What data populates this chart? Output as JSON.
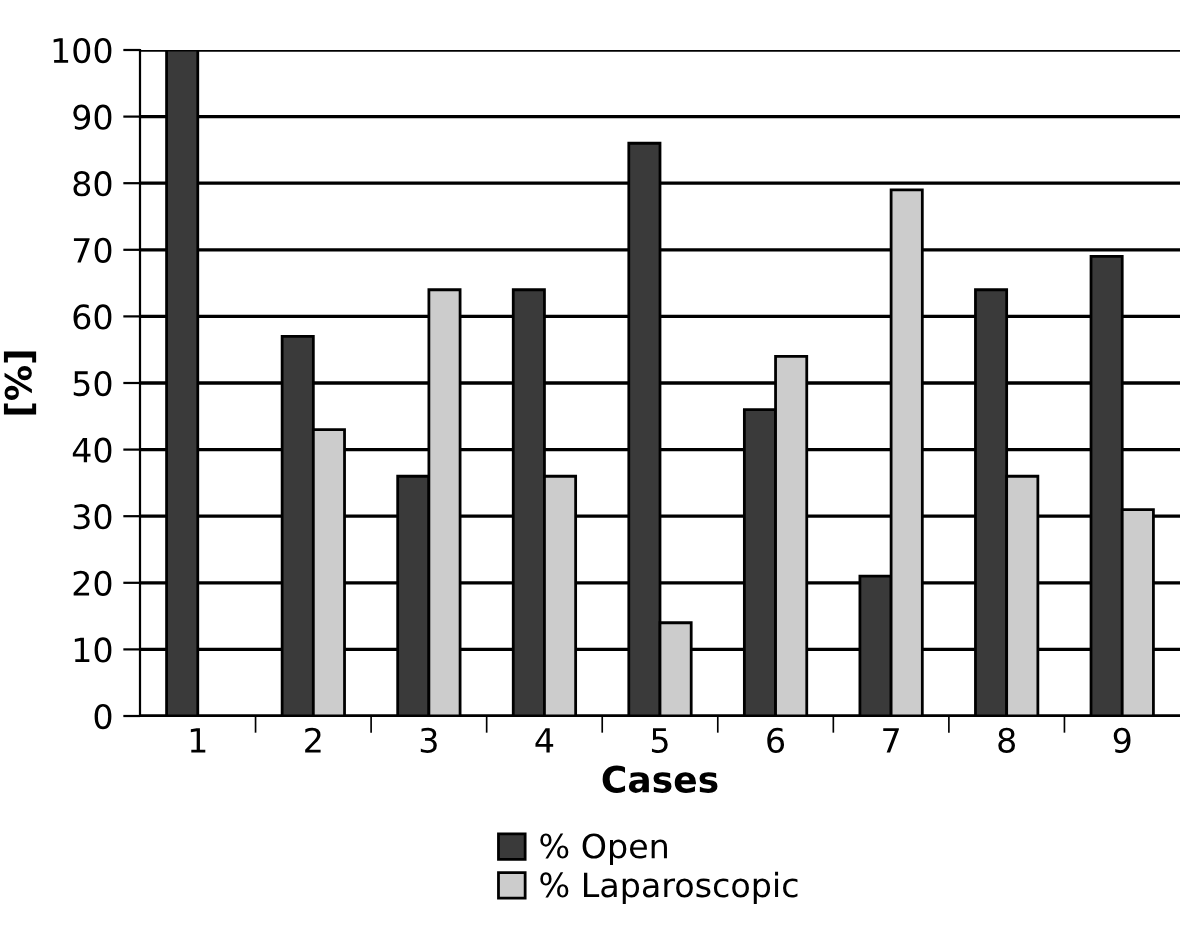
{
  "chart_data": {
    "type": "bar",
    "xlabel": "Cases",
    "ylabel": "[%]",
    "categories": [
      "1",
      "2",
      "3",
      "4",
      "5",
      "6",
      "7",
      "8",
      "9"
    ],
    "series": [
      {
        "name": "% Open",
        "color": "#3a3a3a",
        "values": [
          100,
          57,
          36,
          64,
          86,
          46,
          21,
          64,
          69
        ]
      },
      {
        "name": "% Laparoscopic",
        "color": "#cccccc",
        "values": [
          null,
          43,
          64,
          36,
          14,
          54,
          79,
          36,
          31
        ]
      }
    ],
    "ylim": [
      0,
      100
    ],
    "yticks": [
      0,
      10,
      20,
      30,
      40,
      50,
      60,
      70,
      80,
      90,
      100
    ],
    "grid": "y",
    "legend": "bottom"
  }
}
